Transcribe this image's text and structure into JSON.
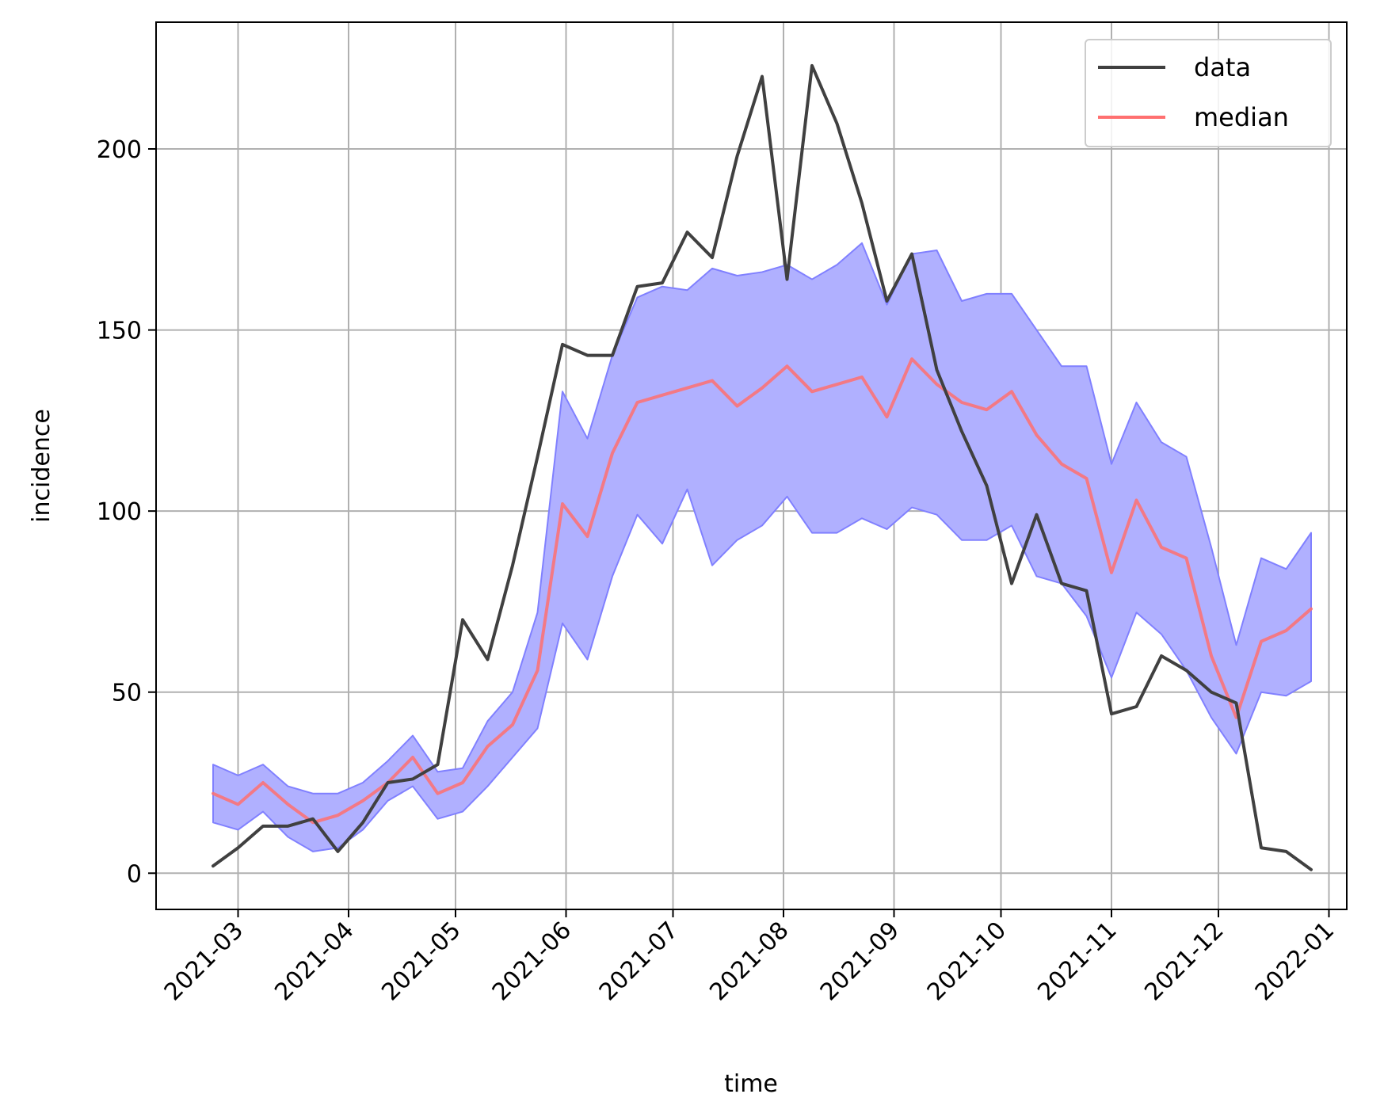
{
  "chart_data": {
    "type": "line",
    "title": "",
    "xlabel": "time",
    "ylabel": "incidence",
    "xlim": [
      "2021-02-06",
      "2022-01-06"
    ],
    "ylim": [
      -10,
      235
    ],
    "x_ticks": [
      "2021-03",
      "2021-04",
      "2021-05",
      "2021-06",
      "2021-07",
      "2021-08",
      "2021-09",
      "2021-10",
      "2021-11",
      "2021-12",
      "2022-01"
    ],
    "y_ticks": [
      0,
      50,
      100,
      150,
      200
    ],
    "grid": true,
    "legend": {
      "position": "top-right",
      "entries": [
        "data",
        "median"
      ]
    },
    "colors": {
      "data": "#404040",
      "median": "#ff7070",
      "band": "#b0b0ff",
      "band_edge": "#8080ff",
      "grid": "#b0b0b0"
    },
    "x": [
      "2021-02-22",
      "2021-03-01",
      "2021-03-08",
      "2021-03-15",
      "2021-03-22",
      "2021-03-29",
      "2021-04-05",
      "2021-04-12",
      "2021-04-19",
      "2021-04-26",
      "2021-05-03",
      "2021-05-10",
      "2021-05-17",
      "2021-05-24",
      "2021-05-31",
      "2021-06-07",
      "2021-06-14",
      "2021-06-21",
      "2021-06-28",
      "2021-07-05",
      "2021-07-12",
      "2021-07-19",
      "2021-07-26",
      "2021-08-02",
      "2021-08-09",
      "2021-08-16",
      "2021-08-23",
      "2021-08-30",
      "2021-09-06",
      "2021-09-13",
      "2021-09-20",
      "2021-09-27",
      "2021-10-04",
      "2021-10-11",
      "2021-10-18",
      "2021-10-25",
      "2021-11-01",
      "2021-11-08",
      "2021-11-15",
      "2021-11-22",
      "2021-11-29",
      "2021-12-06",
      "2021-12-13",
      "2021-12-20",
      "2021-12-27"
    ],
    "series": [
      {
        "name": "data",
        "values": [
          2,
          7,
          13,
          13,
          15,
          6,
          14,
          25,
          26,
          30,
          70,
          59,
          85,
          115,
          146,
          143,
          143,
          162,
          163,
          177,
          170,
          198,
          220,
          164,
          223,
          207,
          185,
          158,
          171,
          139,
          122,
          107,
          80,
          99,
          80,
          78,
          44,
          46,
          60,
          56,
          50,
          47,
          7,
          6,
          1
        ]
      },
      {
        "name": "median",
        "values": [
          22,
          19,
          25,
          19,
          14,
          16,
          20,
          25,
          32,
          22,
          25,
          35,
          41,
          56,
          102,
          93,
          116,
          130,
          132,
          134,
          136,
          129,
          134,
          140,
          133,
          135,
          137,
          126,
          142,
          135,
          130,
          128,
          133,
          121,
          113,
          109,
          83,
          103,
          90,
          87,
          60,
          43,
          64,
          67,
          73
        ]
      }
    ],
    "band": {
      "lower": [
        14,
        12,
        17,
        10,
        6,
        7,
        12,
        20,
        24,
        15,
        17,
        24,
        32,
        40,
        69,
        59,
        82,
        99,
        91,
        106,
        85,
        92,
        96,
        104,
        94,
        94,
        98,
        95,
        101,
        99,
        92,
        92,
        96,
        82,
        80,
        71,
        54,
        72,
        66,
        56,
        43,
        33,
        50,
        49,
        53
      ],
      "upper": [
        30,
        27,
        30,
        24,
        22,
        22,
        25,
        31,
        38,
        28,
        29,
        42,
        50,
        72,
        133,
        120,
        143,
        159,
        162,
        161,
        167,
        165,
        166,
        168,
        164,
        168,
        174,
        157,
        171,
        172,
        158,
        160,
        160,
        150,
        140,
        140,
        113,
        130,
        119,
        115,
        90,
        63,
        87,
        84,
        94
      ]
    }
  }
}
